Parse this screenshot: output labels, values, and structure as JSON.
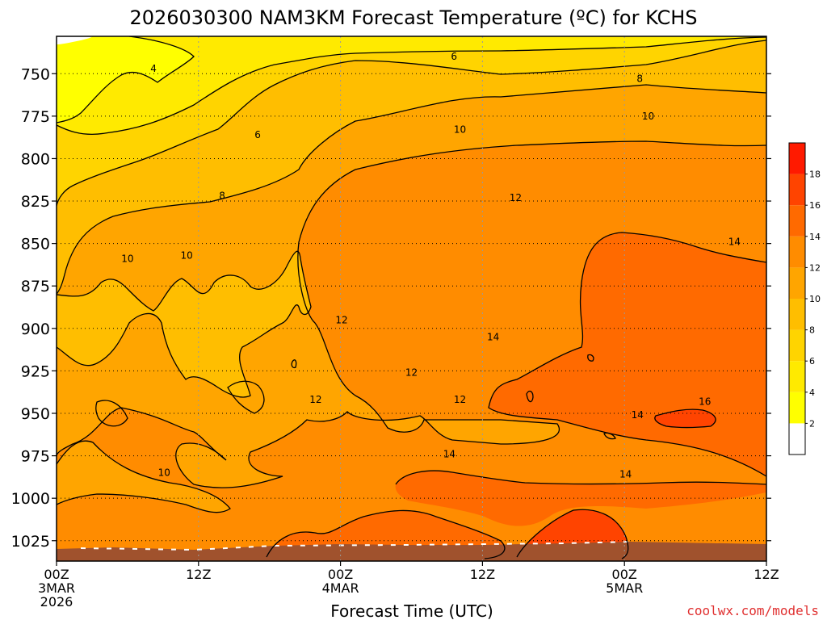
{
  "chart_data": {
    "type": "heatmap",
    "title": "2026030300 NAM3KM Forecast Temperature (ºC) for KCHS",
    "xlabel": "Forecast Time (UTC)",
    "ylabel": "",
    "credit": "coolwx.com/models",
    "x_ticks": [
      {
        "hour": 0,
        "lines": [
          "00Z",
          "3MAR",
          "2026"
        ]
      },
      {
        "hour": 12,
        "lines": [
          "12Z"
        ]
      },
      {
        "hour": 24,
        "lines": [
          "00Z",
          "4MAR"
        ]
      },
      {
        "hour": 36,
        "lines": [
          "12Z"
        ]
      },
      {
        "hour": 48,
        "lines": [
          "00Z",
          "5MAR"
        ]
      },
      {
        "hour": 60,
        "lines": [
          "12Z"
        ]
      }
    ],
    "xlim": [
      0,
      60
    ],
    "y_ticks": [
      750,
      775,
      800,
      825,
      850,
      875,
      900,
      925,
      950,
      975,
      1000,
      1025
    ],
    "ylim": [
      728,
      1037
    ],
    "grid": true,
    "colorbar": {
      "ticks": [
        2,
        4,
        6,
        8,
        10,
        12,
        14,
        16,
        18
      ],
      "bins": [
        {
          "min": 0,
          "max": 2,
          "color": "#ffffff"
        },
        {
          "min": 2,
          "max": 4,
          "color": "#ffff00"
        },
        {
          "min": 4,
          "max": 6,
          "color": "#ffea00"
        },
        {
          "min": 6,
          "max": 8,
          "color": "#ffd400"
        },
        {
          "min": 8,
          "max": 10,
          "color": "#ffbe00"
        },
        {
          "min": 10,
          "max": 12,
          "color": "#ffa500"
        },
        {
          "min": 12,
          "max": 14,
          "color": "#ff8c00"
        },
        {
          "min": 14,
          "max": 16,
          "color": "#ff6a00"
        },
        {
          "min": 16,
          "max": 18,
          "color": "#ff4400"
        },
        {
          "min": 18,
          "max": 20,
          "color": "#ff1a00"
        }
      ]
    },
    "ground_color": "#a0522d",
    "contour_labels": [
      {
        "value": "4",
        "hour": 8.2,
        "pres": 747
      },
      {
        "value": "6",
        "hour": 33.6,
        "pres": 740
      },
      {
        "value": "6",
        "hour": 17.0,
        "pres": 786
      },
      {
        "value": "8",
        "hour": 49.3,
        "pres": 753
      },
      {
        "value": "8",
        "hour": 14.0,
        "pres": 822
      },
      {
        "value": "10",
        "hour": 34.1,
        "pres": 783
      },
      {
        "value": "10",
        "hour": 50.0,
        "pres": 775
      },
      {
        "value": "10",
        "hour": 6.0,
        "pres": 859
      },
      {
        "value": "10",
        "hour": 11.0,
        "pres": 857
      },
      {
        "value": "10",
        "hour": 9.1,
        "pres": 985
      },
      {
        "value": "12",
        "hour": 38.8,
        "pres": 823
      },
      {
        "value": "12",
        "hour": 24.1,
        "pres": 895
      },
      {
        "value": "12",
        "hour": 30.0,
        "pres": 926
      },
      {
        "value": "12",
        "hour": 21.9,
        "pres": 942
      },
      {
        "value": "12",
        "hour": 34.1,
        "pres": 942
      },
      {
        "value": "14",
        "hour": 36.9,
        "pres": 905
      },
      {
        "value": "14",
        "hour": 57.3,
        "pres": 849
      },
      {
        "value": "14",
        "hour": 33.2,
        "pres": 974
      },
      {
        "value": "14",
        "hour": 49.1,
        "pres": 951
      },
      {
        "value": "14",
        "hour": 48.1,
        "pres": 986
      },
      {
        "value": "16",
        "hour": 54.8,
        "pres": 943
      }
    ]
  }
}
